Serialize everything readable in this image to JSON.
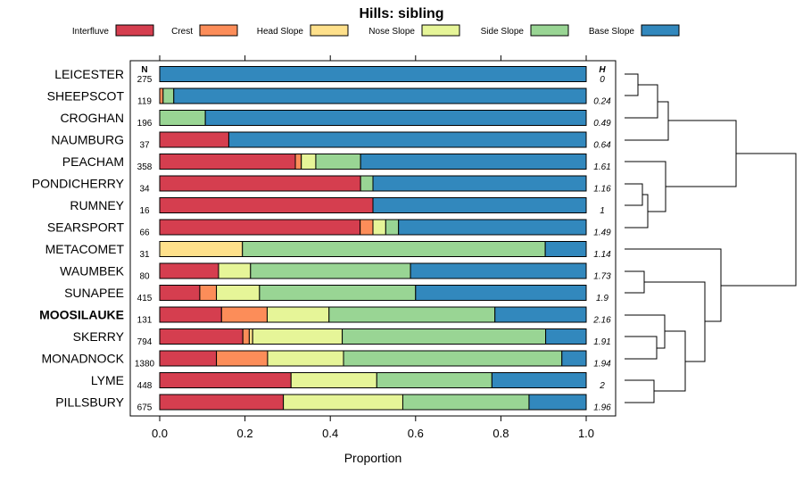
{
  "chart_data": {
    "type": "bar",
    "orientation": "horizontal",
    "stacked": true,
    "title": "Hills: sibling",
    "xlabel": "Proportion",
    "ylabel": "",
    "xlim": [
      0,
      1
    ],
    "x_ticks": [
      "0.0",
      "0.2",
      "0.4",
      "0.6",
      "0.8",
      "1.0"
    ],
    "n_header": "N",
    "h_header": "H",
    "legend_position": "top",
    "series": [
      {
        "name": "Interfluve",
        "color": "#d53e4f"
      },
      {
        "name": "Crest",
        "color": "#fc8d59"
      },
      {
        "name": "Head Slope",
        "color": "#fee08b"
      },
      {
        "name": "Nose Slope",
        "color": "#e6f598"
      },
      {
        "name": "Side Slope",
        "color": "#99d594"
      },
      {
        "name": "Base Slope",
        "color": "#3288bd"
      }
    ],
    "rows": [
      {
        "name": "LEICESTER",
        "n": "275",
        "h": "0",
        "bold": false,
        "values": [
          0,
          0,
          0,
          0,
          0,
          1.0
        ]
      },
      {
        "name": "SHEEPSCOT",
        "n": "119",
        "h": "0.24",
        "bold": false,
        "values": [
          0,
          0.008,
          0,
          0,
          0.025,
          0.967
        ]
      },
      {
        "name": "CROGHAN",
        "n": "196",
        "h": "0.49",
        "bold": false,
        "values": [
          0,
          0,
          0,
          0,
          0.107,
          0.893
        ]
      },
      {
        "name": "NAUMBURG",
        "n": "37",
        "h": "0.64",
        "bold": false,
        "values": [
          0.162,
          0,
          0,
          0,
          0,
          0.838
        ]
      },
      {
        "name": "PEACHAM",
        "n": "358",
        "h": "1.61",
        "bold": false,
        "values": [
          0.318,
          0.014,
          0,
          0.034,
          0.105,
          0.529
        ]
      },
      {
        "name": "PONDICHERRY",
        "n": "34",
        "h": "1.16",
        "bold": false,
        "values": [
          0.471,
          0,
          0,
          0,
          0.029,
          0.5
        ]
      },
      {
        "name": "RUMNEY",
        "n": "16",
        "h": "1",
        "bold": false,
        "values": [
          0.5,
          0,
          0,
          0,
          0,
          0.5
        ]
      },
      {
        "name": "SEARSPORT",
        "n": "66",
        "h": "1.49",
        "bold": false,
        "values": [
          0.47,
          0.03,
          0,
          0.03,
          0.03,
          0.44
        ]
      },
      {
        "name": "METACOMET",
        "n": "31",
        "h": "1.14",
        "bold": false,
        "values": [
          0,
          0,
          0.194,
          0,
          0.71,
          0.096
        ]
      },
      {
        "name": "WAUMBEK",
        "n": "80",
        "h": "1.73",
        "bold": false,
        "values": [
          0.138,
          0,
          0,
          0.075,
          0.375,
          0.412
        ]
      },
      {
        "name": "SUNAPEE",
        "n": "415",
        "h": "1.9",
        "bold": false,
        "values": [
          0.094,
          0.039,
          0,
          0.101,
          0.366,
          0.4
        ]
      },
      {
        "name": "MOOSILAUKE",
        "n": "131",
        "h": "2.16",
        "bold": true,
        "values": [
          0.145,
          0.107,
          0,
          0.145,
          0.389,
          0.214
        ]
      },
      {
        "name": "SKERRY",
        "n": "794",
        "h": "1.91",
        "bold": false,
        "values": [
          0.195,
          0.015,
          0.008,
          0.21,
          0.477,
          0.095
        ]
      },
      {
        "name": "MONADNOCK",
        "n": "1380",
        "h": "1.94",
        "bold": false,
        "values": [
          0.133,
          0.12,
          0,
          0.178,
          0.512,
          0.057
        ]
      },
      {
        "name": "LYME",
        "n": "448",
        "h": "2",
        "bold": false,
        "values": [
          0.308,
          0,
          0,
          0.201,
          0.27,
          0.221
        ]
      },
      {
        "name": "PILLSBURY",
        "n": "675",
        "h": "1.96",
        "bold": false,
        "values": [
          0.29,
          0,
          0,
          0.28,
          0.296,
          0.134
        ]
      }
    ],
    "dendrogram": "hierarchical clustering of rows shown at right"
  }
}
